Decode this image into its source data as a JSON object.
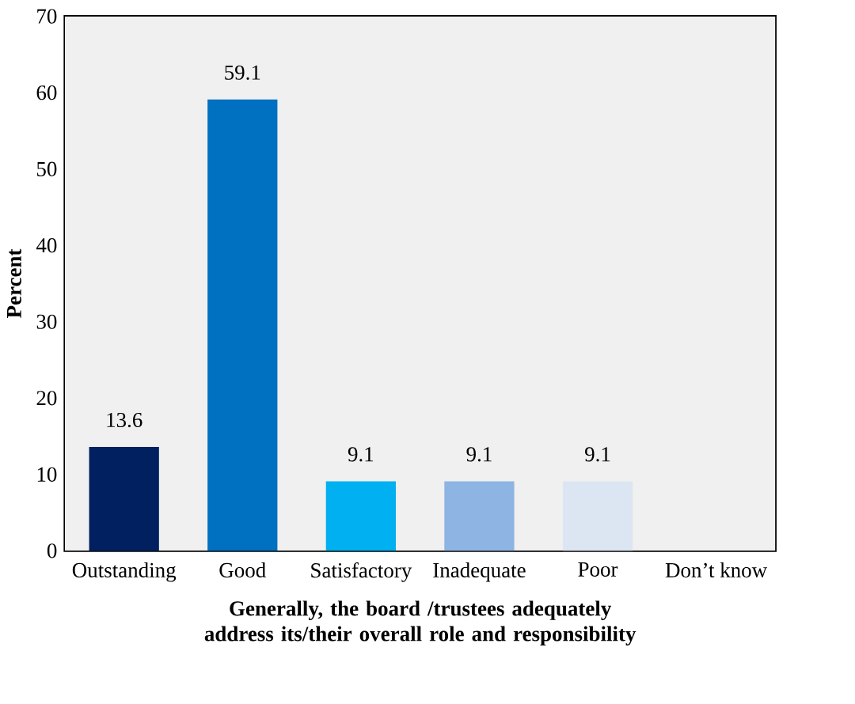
{
  "chart_data": {
    "type": "bar",
    "categories": [
      "Outstanding",
      "Good",
      "Satisfactory",
      "Inadequate",
      "Poor",
      "Don’t know"
    ],
    "values": [
      13.6,
      59.1,
      9.1,
      9.1,
      9.1,
      0
    ],
    "colors": [
      "#002060",
      "#0070c0",
      "#00b0f0",
      "#8db4e2",
      "#dce6f2",
      "#c5d9f1"
    ],
    "value_labels": [
      "13.6",
      "59.1",
      "9.1",
      "9.1",
      "9.1",
      null
    ],
    "xlabel": "Generally, the board /trustees adequately address its/their overall role and responsibility",
    "ylabel": "Percent",
    "ylim": [
      0,
      70
    ],
    "yticks": [
      0,
      10,
      20,
      30,
      40,
      50,
      60,
      70
    ]
  }
}
